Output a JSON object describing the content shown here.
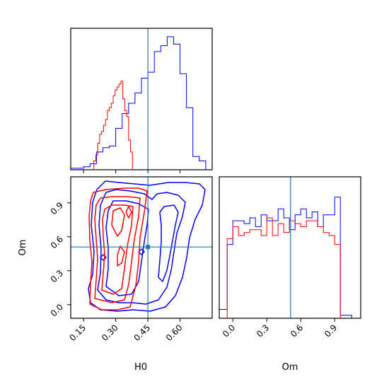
{
  "chart_data": {
    "type": "corner",
    "parameters": [
      "H0",
      "Om"
    ],
    "truth": {
      "H0": 0.45,
      "Om": 0.51
    },
    "truth_color": "#1f77b4",
    "series": [
      {
        "color": "#0000ff"
      },
      {
        "color": "#ff0000"
      }
    ],
    "panels": [
      {
        "id": "hist-H0",
        "type": "step-histogram",
        "x_range": [
          0.09,
          0.75
        ],
        "x_ticks": [
          0.15,
          0.3,
          0.45,
          0.6
        ],
        "edges": [
          0.09,
          0.12,
          0.15,
          0.18,
          0.21,
          0.24,
          0.27,
          0.3,
          0.33,
          0.36,
          0.39,
          0.42,
          0.45,
          0.48,
          0.51,
          0.54,
          0.57,
          0.6,
          0.63,
          0.66,
          0.69,
          0.72,
          0.75
        ],
        "blue_counts": [
          0.01,
          0.01,
          0.02,
          0.04,
          0.12,
          0.15,
          0.16,
          0.28,
          0.38,
          0.45,
          0.52,
          0.62,
          0.66,
          0.8,
          0.84,
          0.9,
          0.85,
          0.65,
          0.42,
          0.09,
          0.06,
          0.0
        ],
        "red_bins": {
          "edges": [
            0.198,
            0.207,
            0.216,
            0.225,
            0.234,
            0.243,
            0.252,
            0.261,
            0.27,
            0.279,
            0.288,
            0.297,
            0.306,
            0.315,
            0.324,
            0.333,
            0.342,
            0.351,
            0.36,
            0.369,
            0.378
          ],
          "counts": [
            0.06,
            0.1,
            0.18,
            0.24,
            0.26,
            0.3,
            0.34,
            0.4,
            0.42,
            0.45,
            0.5,
            0.54,
            0.56,
            0.58,
            0.6,
            0.48,
            0.4,
            0.36,
            0.2,
            0.12
          ]
        }
      },
      {
        "id": "hist-Om",
        "type": "step-histogram",
        "x_range": [
          -0.12,
          1.13
        ],
        "x_ticks": [
          0.0,
          0.3,
          0.6,
          0.9
        ],
        "x_tick_labels": [
          "0.0",
          "0.3",
          "0.6",
          "0.9"
        ],
        "edges": [
          -0.12,
          -0.05,
          0.0,
          0.05,
          0.1,
          0.15,
          0.2,
          0.25,
          0.3,
          0.35,
          0.4,
          0.45,
          0.5,
          0.55,
          0.6,
          0.65,
          0.7,
          0.75,
          0.8,
          0.85,
          0.9,
          0.95,
          1.0,
          1.05,
          1.13
        ],
        "blue_counts": [
          0.06,
          0.5,
          0.66,
          0.66,
          0.64,
          0.68,
          0.62,
          0.7,
          0.66,
          0.66,
          0.74,
          0.68,
          0.6,
          0.7,
          0.74,
          0.68,
          0.72,
          0.62,
          0.7,
          0.7,
          0.82,
          0.02,
          0.02,
          0.0
        ],
        "red_counts": [
          0.0,
          0.54,
          0.62,
          0.56,
          0.58,
          0.6,
          0.6,
          0.56,
          0.68,
          0.56,
          0.64,
          0.58,
          0.66,
          0.64,
          0.62,
          0.66,
          0.66,
          0.62,
          0.58,
          0.56,
          0.5,
          0.0,
          0.0,
          0.0
        ]
      },
      {
        "id": "contour-H0-Om",
        "type": "contour",
        "x_range": [
          0.09,
          0.75
        ],
        "y_range": [
          -0.12,
          1.13
        ],
        "x_ticks": [
          0.15,
          0.3,
          0.45,
          0.6
        ],
        "y_ticks": [
          0.0,
          0.3,
          0.6,
          0.9
        ],
        "y_tick_labels": [
          "0.0",
          "0.3",
          "0.6",
          "0.9"
        ],
        "xlabel": "H0",
        "ylabel": "Om"
      }
    ]
  }
}
